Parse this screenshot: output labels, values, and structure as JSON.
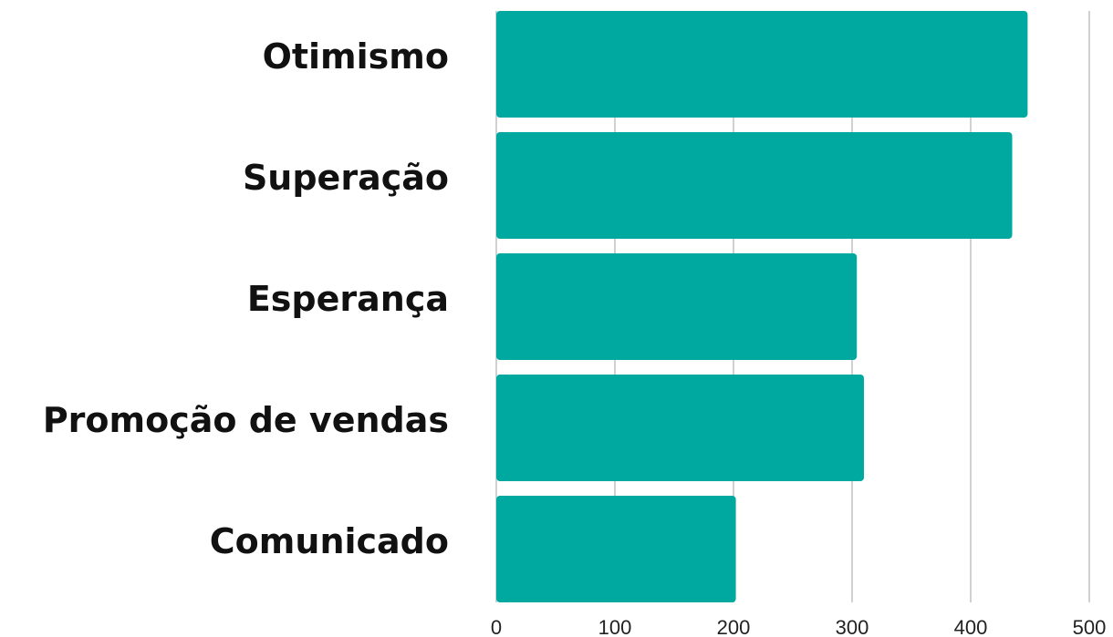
{
  "chart_data": {
    "type": "bar",
    "orientation": "horizontal",
    "categories": [
      "Otimismo",
      "Superação",
      "Esperança",
      "Promoção de vendas",
      "Comunicado"
    ],
    "values": [
      448,
      435,
      304,
      310,
      202
    ],
    "color": "#00a9a0",
    "xlim": [
      0,
      500
    ],
    "xticks": [
      0,
      100,
      200,
      300,
      400,
      500
    ],
    "grid": true
  }
}
